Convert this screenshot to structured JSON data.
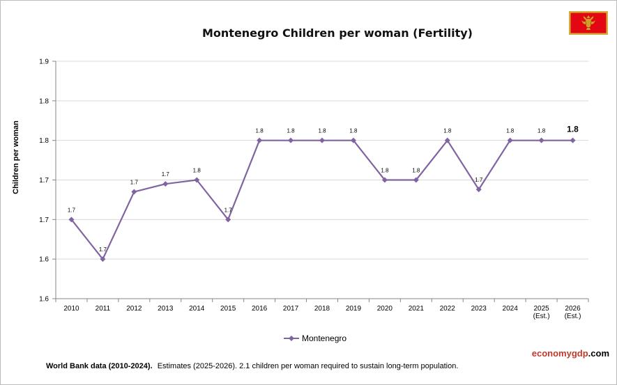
{
  "chart_data": {
    "type": "line",
    "title": "Montenegro Children per woman (Fertility)",
    "ylabel": "Children per woman",
    "xlabel": "",
    "x_labels": [
      [
        "2010"
      ],
      [
        "2011"
      ],
      [
        "2012"
      ],
      [
        "2013"
      ],
      [
        "2014"
      ],
      [
        "2015"
      ],
      [
        "2016"
      ],
      [
        "2017"
      ],
      [
        "2018"
      ],
      [
        "2019"
      ],
      [
        "2020"
      ],
      [
        "2021"
      ],
      [
        "2022"
      ],
      [
        "2023"
      ],
      [
        "2024"
      ],
      [
        "2025",
        "(Est.)"
      ],
      [
        "2026",
        "(Est.)"
      ]
    ],
    "y_ticks": [
      "1.9",
      "1.8",
      "1.8",
      "1.7",
      "1.7",
      "1.6",
      "1.6"
    ],
    "ylim": [
      1.6,
      1.9
    ],
    "grid": true,
    "legend_position": "bottom",
    "series": [
      {
        "name": "Montenegro",
        "color": "#8064a2",
        "values": [
          1.7,
          1.65,
          1.735,
          1.745,
          1.75,
          1.7,
          1.8,
          1.8,
          1.8,
          1.8,
          1.75,
          1.75,
          1.8,
          1.738,
          1.8,
          1.8,
          1.8
        ],
        "labels": [
          "1.7",
          "1.7",
          "1.7",
          "1.7",
          "1.8",
          "1.7",
          "1.8",
          "1.8",
          "1.8",
          "1.8",
          "1.8",
          "1.8",
          "1.8",
          "1.7",
          "1.8",
          "1.8",
          "1.8"
        ]
      }
    ]
  },
  "footnote": {
    "bold_part": "World Bank data (2010-2024).",
    "rest": "Estimates  (2025-2026).  2.1 children per woman required to sustain long-term population."
  },
  "brand": {
    "part1": "economy",
    "part2": "gdp",
    "part3": ".com",
    "color1": "#c0392b",
    "color2": "#c0392b",
    "color3": "#000000"
  },
  "flag": {
    "icon": "montenegro-flag-icon",
    "border_color": "#d4af37",
    "field_color": "#e30613",
    "emblem_color": "#c9a227"
  }
}
